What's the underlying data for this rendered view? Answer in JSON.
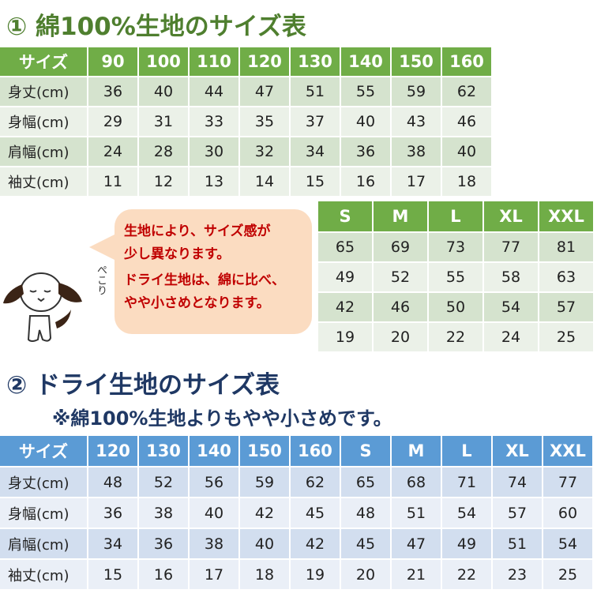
{
  "section1": {
    "title": "① 綿100%生地のサイズ表",
    "header": [
      "サイズ",
      "90",
      "100",
      "110",
      "120",
      "130",
      "140",
      "150",
      "160"
    ],
    "rows": [
      [
        "身丈(cm)",
        "36",
        "40",
        "44",
        "47",
        "51",
        "55",
        "59",
        "62"
      ],
      [
        "身幅(cm)",
        "29",
        "31",
        "33",
        "35",
        "37",
        "40",
        "43",
        "46"
      ],
      [
        "肩幅(cm)",
        "24",
        "28",
        "30",
        "32",
        "34",
        "36",
        "38",
        "40"
      ],
      [
        "袖丈(cm)",
        "11",
        "12",
        "13",
        "14",
        "15",
        "16",
        "17",
        "18"
      ]
    ],
    "adult_header": [
      "S",
      "M",
      "L",
      "XL",
      "XXL"
    ],
    "adult_rows": [
      [
        "65",
        "69",
        "73",
        "77",
        "81"
      ],
      [
        "49",
        "52",
        "55",
        "58",
        "63"
      ],
      [
        "42",
        "46",
        "50",
        "54",
        "57"
      ],
      [
        "19",
        "20",
        "22",
        "24",
        "25"
      ]
    ]
  },
  "note": {
    "lines": [
      "生地により、サイズ感が",
      "少し異なります。",
      "ドライ生地は、綿に比べ、",
      "やや小さめとなります。"
    ],
    "dog_text": "ぺこり"
  },
  "section2": {
    "title": "② ドライ生地のサイズ表",
    "subtitle": "※綿100%生地よりもやや小さめです。",
    "header": [
      "サイズ",
      "120",
      "130",
      "140",
      "150",
      "160",
      "S",
      "M",
      "L",
      "XL",
      "XXL"
    ],
    "rows": [
      [
        "身丈(cm)",
        "48",
        "52",
        "56",
        "59",
        "62",
        "65",
        "68",
        "71",
        "74",
        "77"
      ],
      [
        "身幅(cm)",
        "36",
        "38",
        "40",
        "42",
        "45",
        "48",
        "51",
        "54",
        "57",
        "60"
      ],
      [
        "肩幅(cm)",
        "34",
        "36",
        "38",
        "40",
        "42",
        "45",
        "47",
        "49",
        "51",
        "54"
      ],
      [
        "袖丈(cm)",
        "15",
        "16",
        "17",
        "18",
        "19",
        "20",
        "21",
        "22",
        "23",
        "25"
      ]
    ]
  },
  "colors": {
    "green": "#70ad47",
    "blue": "#5b9bd5",
    "note_red": "#c00000",
    "bubble": "#fbdcc1"
  }
}
